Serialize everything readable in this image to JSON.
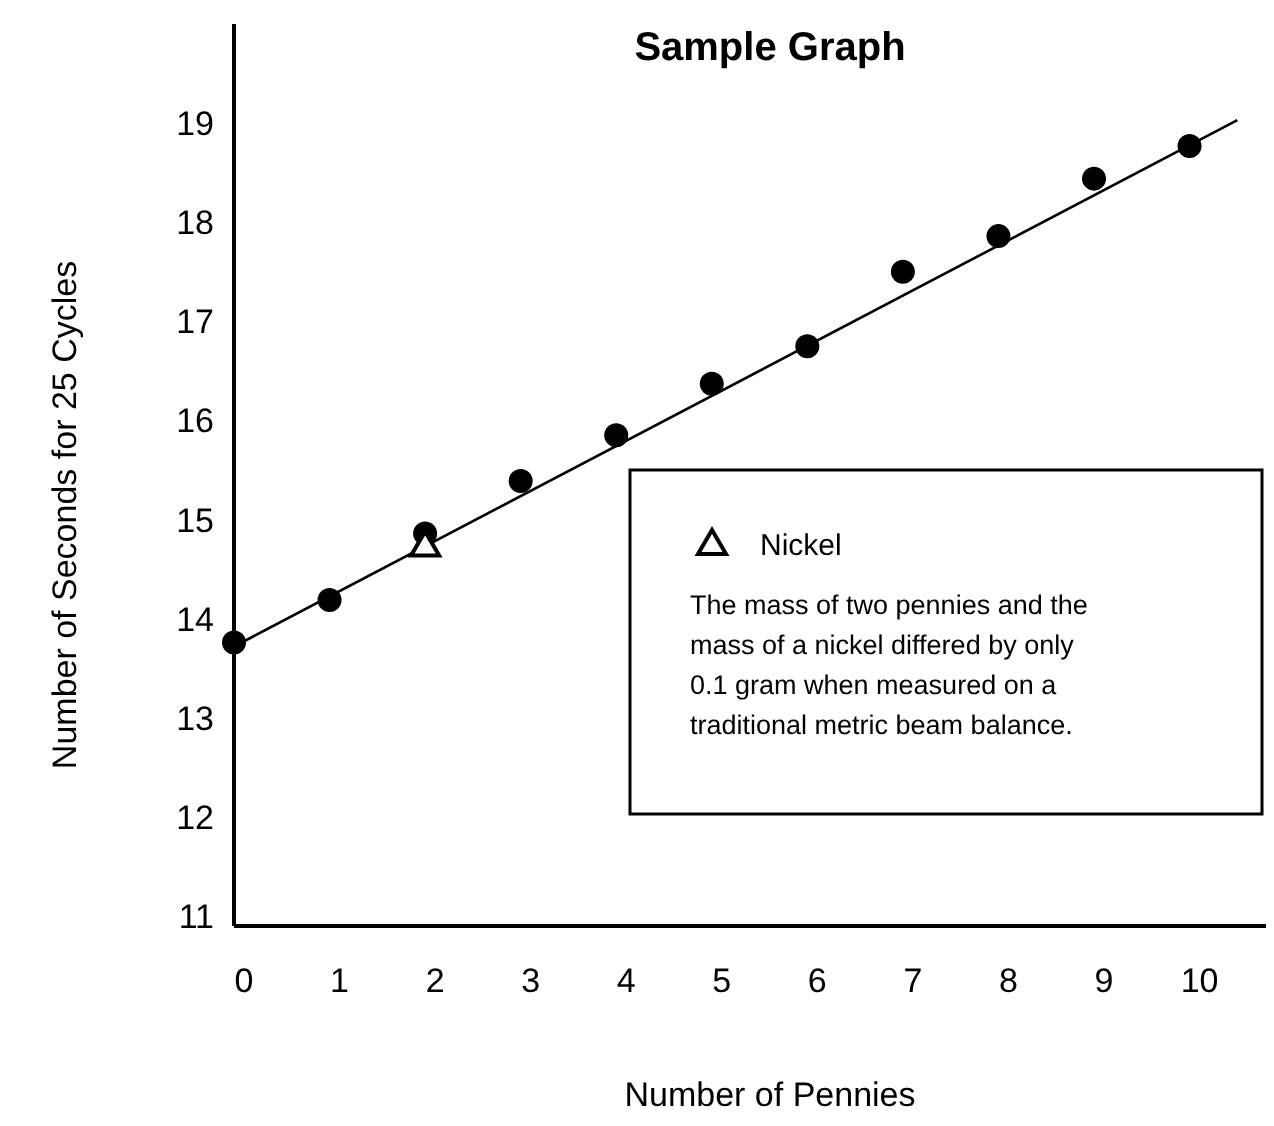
{
  "chart_data": {
    "type": "scatter",
    "title": "Sample Graph",
    "xlabel": "Number of Pennies",
    "ylabel": "Number of Seconds for 25 Cycles",
    "x": [
      0,
      1,
      2,
      3,
      4,
      5,
      6,
      7,
      8,
      9,
      10
    ],
    "series": [
      {
        "marker": "circle",
        "color": "#000000",
        "values": [
          13.76,
          14.19,
          14.86,
          15.39,
          15.85,
          16.37,
          16.75,
          17.5,
          17.86,
          18.44,
          18.77
        ]
      },
      {
        "type": "scatter",
        "name": "Nickel",
        "marker": "triangle",
        "color": "#000000",
        "x": [
          2
        ],
        "values": [
          14.74
        ]
      },
      {
        "type": "line",
        "marker": "none",
        "color": "#000000",
        "x": [
          0,
          10.5
        ],
        "values": [
          13.72,
          19.03
        ]
      }
    ],
    "annotations": [
      "The mass of two pennies and the mass of a nickel differed by only 0.1 gram when measured on a traditional metric beam balance."
    ],
    "xlim": [
      0,
      10.8
    ],
    "ylim": [
      10.9,
      20
    ],
    "xticks": [
      0,
      1,
      2,
      3,
      4,
      5,
      6,
      7,
      8,
      9,
      10
    ],
    "yticks": [
      11,
      12,
      13,
      14,
      15,
      16,
      17,
      18,
      19
    ],
    "grid": false,
    "legend": "right"
  }
}
